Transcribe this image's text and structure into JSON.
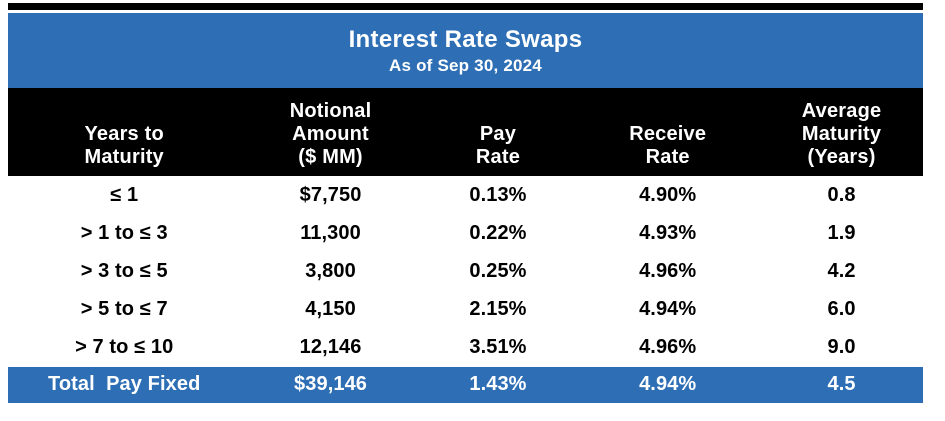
{
  "table": {
    "title": "Interest Rate Swaps",
    "subtitle": "As of Sep 30, 2024",
    "column_headers": [
      {
        "label": "Years to\nMaturity"
      },
      {
        "label": "Notional\nAmount\n($ MM)"
      },
      {
        "label": "Pay\nRate"
      },
      {
        "label": "Receive\nRate"
      },
      {
        "label": "Average\nMaturity\n(Years)"
      }
    ],
    "rows": [
      {
        "cells": [
          "≤ 1",
          "$7,750",
          "0.13%",
          "4.90%",
          "0.8"
        ]
      },
      {
        "cells": [
          "> 1 to ≤ 3",
          "11,300",
          "0.22%",
          "4.93%",
          "1.9"
        ]
      },
      {
        "cells": [
          "> 3 to ≤ 5",
          "3,800",
          "0.25%",
          "4.96%",
          "4.2"
        ]
      },
      {
        "cells": [
          "> 5 to ≤ 7",
          "4,150",
          "2.15%",
          "4.94%",
          "6.0"
        ]
      },
      {
        "cells": [
          "> 7 to ≤ 10",
          "12,146",
          "3.51%",
          "4.96%",
          "9.0"
        ]
      }
    ],
    "total": {
      "cells": [
        "Total  Pay Fixed",
        "$39,146",
        "1.43%",
        "4.94%",
        "4.5"
      ]
    }
  },
  "colors": {
    "accent_blue": "#2D6EB5",
    "header_black": "#000000",
    "text_light": "#FFFFFF",
    "text_dark": "#000000"
  },
  "chart_data": {
    "type": "table",
    "title": "Interest Rate Swaps",
    "subtitle": "As of Sep 30, 2024",
    "columns": [
      "Years to Maturity",
      "Notional Amount ($ MM)",
      "Pay Rate",
      "Receive Rate",
      "Average Maturity (Years)"
    ],
    "rows": [
      [
        "≤ 1",
        7750,
        "0.13%",
        "4.90%",
        0.8
      ],
      [
        "> 1 to ≤ 3",
        11300,
        "0.22%",
        "4.93%",
        1.9
      ],
      [
        "> 3 to ≤ 5",
        3800,
        "0.25%",
        "4.96%",
        4.2
      ],
      [
        "> 5 to ≤ 7",
        4150,
        "2.15%",
        "4.94%",
        6.0
      ],
      [
        "> 7 to ≤ 10",
        12146,
        "3.51%",
        "4.96%",
        9.0
      ]
    ],
    "total_row": [
      "Total Pay Fixed",
      39146,
      "1.43%",
      "4.94%",
      4.5
    ]
  }
}
